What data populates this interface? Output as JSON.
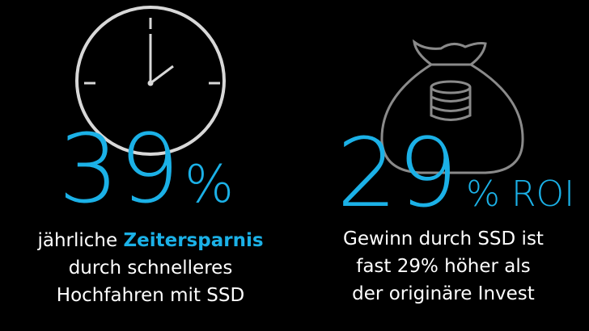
{
  "left": {
    "number": "39",
    "unit": "%",
    "lines": [
      [
        "jährliche ",
        "Zeitersparnis"
      ],
      [
        "durch schnelleres"
      ],
      [
        "Hochfahren mit SSD"
      ]
    ]
  },
  "right": {
    "number": "29",
    "unit": "% ROI",
    "lines": [
      [
        "Gewinn durch SSD ist"
      ],
      [
        "fast 29% höher als"
      ],
      [
        "der originäre Invest"
      ]
    ]
  }
}
